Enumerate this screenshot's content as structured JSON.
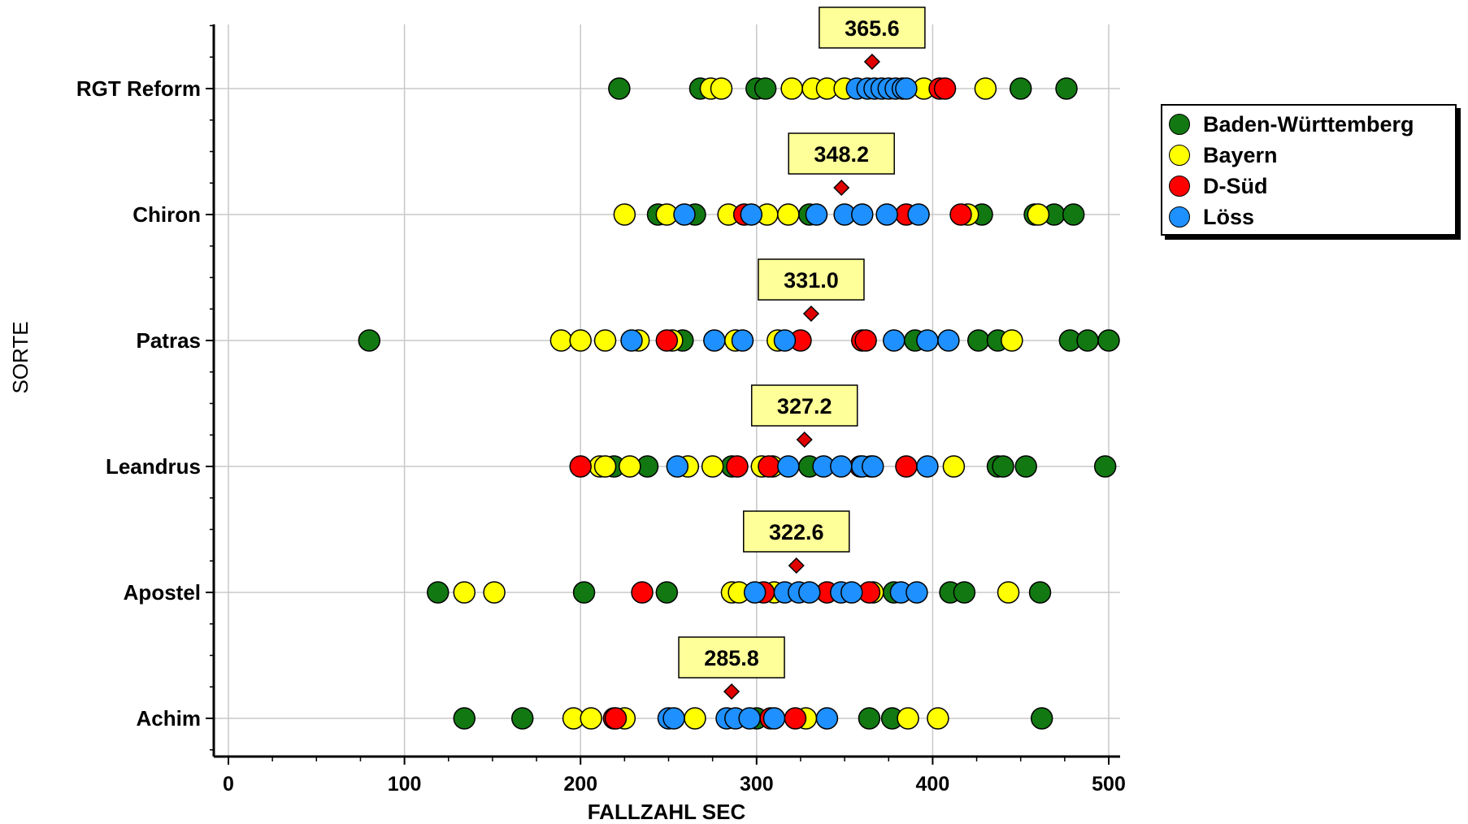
{
  "chart_data": {
    "type": "scatter",
    "title": "",
    "xlabel": "FALLZAHL SEC",
    "ylabel": "SORTE",
    "xlim": [
      0,
      500
    ],
    "x_ticks": [
      "0",
      "100",
      "200",
      "300",
      "400",
      "500"
    ],
    "x_tick_values": [
      0,
      100,
      200,
      300,
      400,
      500
    ],
    "grid": true,
    "legend_position": "right-top",
    "categories": [
      "RGT Reform",
      "Chiron",
      "Patras",
      "Leandrus",
      "Apostel",
      "Achim"
    ],
    "means": [
      {
        "category": "RGT Reform",
        "value": 365.6,
        "label": "365.6"
      },
      {
        "category": "Chiron",
        "value": 348.2,
        "label": "348.2"
      },
      {
        "category": "Patras",
        "value": 331.0,
        "label": "331.0"
      },
      {
        "category": "Leandrus",
        "value": 327.2,
        "label": "327.2"
      },
      {
        "category": "Apostel",
        "value": 322.6,
        "label": "322.6"
      },
      {
        "category": "Achim",
        "value": 285.8,
        "label": "285.8"
      }
    ],
    "series": [
      {
        "name": "Baden-Württemberg",
        "color": "#127812",
        "values": {
          "RGT Reform": [
            222,
            268,
            300,
            305,
            450,
            476
          ],
          "Chiron": [
            244,
            265,
            330,
            428,
            458,
            469,
            480
          ],
          "Patras": [
            80,
            258,
            390,
            426,
            437,
            478,
            488,
            500
          ],
          "Leandrus": [
            219,
            238,
            286,
            330,
            365,
            437,
            440,
            453,
            498
          ],
          "Apostel": [
            119,
            202,
            249,
            378,
            410,
            418,
            461
          ],
          "Achim": [
            134,
            167,
            300,
            364,
            377,
            462
          ]
        }
      },
      {
        "name": "Bayern",
        "color": "#ffff00",
        "values": {
          "RGT Reform": [
            274,
            280,
            320,
            332,
            340,
            350,
            395,
            430
          ],
          "Chiron": [
            225,
            249,
            284,
            306,
            318,
            420,
            460
          ],
          "Patras": [
            189,
            200,
            214,
            233,
            252,
            288,
            312,
            445
          ],
          "Leandrus": [
            211,
            214,
            228,
            261,
            275,
            303,
            309,
            412
          ],
          "Apostel": [
            134,
            151,
            286,
            290,
            310,
            366,
            443
          ],
          "Achim": [
            196,
            206,
            225,
            265,
            328,
            386,
            403
          ]
        }
      },
      {
        "name": "D-Süd",
        "color": "#ff0000",
        "values": {
          "RGT Reform": [
            404,
            407
          ],
          "Chiron": [
            293,
            385,
            416
          ],
          "Patras": [
            249,
            325,
            360,
            362
          ],
          "Leandrus": [
            200,
            289,
            307,
            359,
            385
          ],
          "Apostel": [
            235,
            304,
            340,
            364
          ],
          "Achim": [
            219,
            220,
            308,
            322
          ]
        }
      },
      {
        "name": "Löss",
        "color": "#1e90ff",
        "values": {
          "RGT Reform": [
            357,
            363,
            367,
            371,
            375,
            379,
            383,
            385
          ],
          "Chiron": [
            259,
            297,
            334,
            350,
            360,
            374,
            392
          ],
          "Patras": [
            229,
            276,
            292,
            316,
            378,
            397,
            409
          ],
          "Leandrus": [
            255,
            318,
            338,
            348,
            360,
            366,
            397
          ],
          "Apostel": [
            299,
            316,
            324,
            330,
            348,
            354,
            382,
            391
          ],
          "Achim": [
            250,
            253,
            283,
            288,
            296,
            310,
            340
          ]
        }
      }
    ]
  }
}
